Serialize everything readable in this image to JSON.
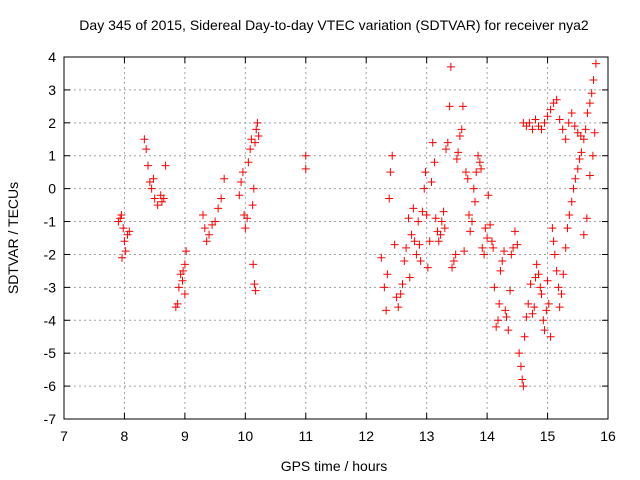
{
  "chart_data": {
    "type": "scatter",
    "title": "Day 345 of 2015, Sidereal Day-to-day VTEC variation (SDTVAR) for receiver nya2",
    "xlabel": "GPS time / hours",
    "ylabel": "SDTVAR / TECUs",
    "xlim": [
      7,
      16
    ],
    "ylim": [
      -7,
      4
    ],
    "xticks": [
      "7",
      "8",
      "9",
      "10",
      "11",
      "12",
      "13",
      "14",
      "15",
      "16"
    ],
    "yticks": [
      "-7",
      "-6",
      "-5",
      "-4",
      "-3",
      "-2",
      "-1",
      "0",
      "1",
      "2",
      "3",
      "4"
    ],
    "grid": true,
    "marker": "+",
    "color": "#ff0000",
    "series": [
      {
        "name": "SDTVAR",
        "segments": [
          [
            [
              7.9,
              -1.0
            ],
            [
              7.95,
              -0.8
            ],
            [
              7.98,
              -1.2
            ],
            [
              8.0,
              -1.6
            ],
            [
              8.02,
              -1.9
            ],
            [
              8.05,
              -1.4
            ],
            [
              8.08,
              -1.3
            ],
            [
              7.93,
              -0.9
            ],
            [
              7.96,
              -2.1
            ]
          ],
          [
            [
              8.33,
              1.5
            ],
            [
              8.36,
              1.2
            ],
            [
              8.39,
              0.7
            ],
            [
              8.42,
              0.2
            ],
            [
              8.45,
              0.0
            ],
            [
              8.48,
              0.3
            ],
            [
              8.5,
              -0.3
            ],
            [
              8.55,
              -0.5
            ],
            [
              8.6,
              -0.2
            ],
            [
              8.65,
              -0.3
            ],
            [
              8.68,
              0.7
            ],
            [
              8.62,
              -0.4
            ]
          ],
          [
            [
              8.85,
              -3.6
            ],
            [
              8.88,
              -3.5
            ],
            [
              8.9,
              -3.0
            ],
            [
              8.93,
              -2.6
            ],
            [
              8.96,
              -2.8
            ],
            [
              9.0,
              -2.3
            ],
            [
              9.02,
              -1.9
            ],
            [
              9.0,
              -3.2
            ],
            [
              8.97,
              -2.5
            ]
          ],
          [
            [
              9.3,
              -0.8
            ],
            [
              9.33,
              -1.2
            ],
            [
              9.36,
              -1.6
            ],
            [
              9.4,
              -1.4
            ],
            [
              9.45,
              -1.1
            ],
            [
              9.5,
              -1.0
            ],
            [
              9.55,
              -0.6
            ],
            [
              9.6,
              -0.3
            ],
            [
              9.65,
              0.3
            ]
          ],
          [
            [
              9.9,
              -0.2
            ],
            [
              9.93,
              0.2
            ],
            [
              9.96,
              0.5
            ],
            [
              9.98,
              -0.8
            ],
            [
              10.0,
              -1.2
            ],
            [
              10.03,
              -0.9
            ],
            [
              10.05,
              0.8
            ],
            [
              10.08,
              1.2
            ],
            [
              10.1,
              1.5
            ],
            [
              10.12,
              -0.5
            ],
            [
              10.14,
              0.0
            ],
            [
              10.16,
              1.4
            ],
            [
              10.18,
              1.8
            ],
            [
              10.2,
              2.0
            ],
            [
              10.22,
              1.6
            ],
            [
              10.13,
              -2.3
            ],
            [
              10.17,
              -3.1
            ],
            [
              10.15,
              -2.9
            ]
          ],
          [
            [
              11.0,
              1.0
            ],
            [
              11.0,
              0.6
            ]
          ],
          [
            [
              12.25,
              -2.1
            ],
            [
              12.3,
              -3.0
            ],
            [
              12.33,
              -3.7
            ],
            [
              12.35,
              -2.6
            ],
            [
              12.38,
              -0.3
            ],
            [
              12.4,
              0.5
            ],
            [
              12.43,
              1.0
            ],
            [
              12.47,
              -1.7
            ],
            [
              12.5,
              -3.3
            ],
            [
              12.53,
              -3.6
            ],
            [
              12.57,
              -3.2
            ],
            [
              12.6,
              -2.9
            ],
            [
              12.63,
              -2.2
            ],
            [
              12.66,
              -1.8
            ],
            [
              12.7,
              -0.9
            ],
            [
              12.72,
              -2.7
            ],
            [
              12.75,
              -1.4
            ],
            [
              12.78,
              -0.6
            ],
            [
              12.8,
              -1.6
            ],
            [
              12.83,
              -2.0
            ],
            [
              12.86,
              -1.0
            ],
            [
              12.88,
              -1.7
            ],
            [
              12.9,
              -2.2
            ],
            [
              12.93,
              -0.7
            ],
            [
              12.96,
              0.0
            ],
            [
              12.98,
              0.5
            ],
            [
              13.0,
              -0.8
            ],
            [
              13.02,
              -2.4
            ],
            [
              13.05,
              -1.6
            ],
            [
              13.08,
              0.2
            ],
            [
              13.1,
              1.4
            ],
            [
              13.13,
              0.8
            ],
            [
              13.15,
              -0.9
            ],
            [
              13.18,
              -1.3
            ],
            [
              13.2,
              -1.6
            ],
            [
              13.23,
              -1.4
            ],
            [
              13.25,
              -1.0
            ],
            [
              13.28,
              -0.7
            ],
            [
              13.3,
              -1.2
            ],
            [
              13.32,
              1.2
            ],
            [
              13.35,
              1.4
            ],
            [
              13.38,
              2.5
            ],
            [
              13.4,
              3.7
            ],
            [
              13.42,
              -2.4
            ],
            [
              13.45,
              -2.2
            ],
            [
              13.48,
              -2.0
            ],
            [
              13.5,
              0.9
            ],
            [
              13.52,
              1.1
            ],
            [
              13.55,
              1.6
            ],
            [
              13.58,
              1.8
            ],
            [
              13.6,
              2.5
            ],
            [
              13.62,
              -1.9
            ],
            [
              13.65,
              0.5
            ],
            [
              13.68,
              0.3
            ],
            [
              13.7,
              -0.8
            ],
            [
              13.72,
              -1.3
            ],
            [
              13.75,
              -1.0
            ],
            [
              13.78,
              0.0
            ],
            [
              13.8,
              -0.4
            ],
            [
              13.82,
              0.5
            ],
            [
              13.85,
              1.0
            ],
            [
              13.88,
              0.8
            ],
            [
              13.9,
              0.6
            ],
            [
              13.92,
              -1.8
            ],
            [
              13.95,
              -2.0
            ],
            [
              13.97,
              -1.2
            ],
            [
              14.0,
              -1.5
            ],
            [
              14.02,
              -0.2
            ],
            [
              14.05,
              -1.1
            ],
            [
              14.08,
              -1.6
            ],
            [
              14.1,
              -1.8
            ],
            [
              14.12,
              -3.0
            ],
            [
              14.15,
              -4.2
            ],
            [
              14.18,
              -4.0
            ],
            [
              14.2,
              -3.5
            ],
            [
              14.22,
              -2.5
            ],
            [
              14.25,
              -2.2
            ],
            [
              14.28,
              -1.9
            ],
            [
              14.3,
              -3.7
            ],
            [
              14.32,
              -3.9
            ],
            [
              14.35,
              -4.3
            ],
            [
              14.38,
              -3.1
            ],
            [
              14.4,
              -2.0
            ],
            [
              14.43,
              -1.8
            ],
            [
              14.46,
              -1.3
            ],
            [
              14.5,
              -1.7
            ],
            [
              14.53,
              -5.0
            ],
            [
              14.56,
              -5.4
            ],
            [
              14.58,
              -5.8
            ],
            [
              14.6,
              -6.0
            ],
            [
              14.62,
              -4.5
            ],
            [
              14.65,
              -3.9
            ],
            [
              14.68,
              -3.5
            ],
            [
              14.72,
              -2.9
            ],
            [
              14.75,
              -3.8
            ],
            [
              14.78,
              -3.6
            ],
            [
              14.8,
              -2.7
            ],
            [
              14.82,
              -2.3
            ],
            [
              14.85,
              -2.6
            ],
            [
              14.88,
              -3.0
            ],
            [
              14.9,
              -3.2
            ],
            [
              14.93,
              -4.0
            ],
            [
              14.95,
              -4.3
            ],
            [
              14.98,
              -3.7
            ],
            [
              15.0,
              -2.8
            ],
            [
              15.02,
              -3.5
            ],
            [
              15.05,
              -4.5
            ],
            [
              15.08,
              -1.2
            ],
            [
              15.1,
              -1.6
            ],
            [
              15.12,
              -2.0
            ],
            [
              15.15,
              -2.5
            ],
            [
              15.18,
              -3.0
            ],
            [
              15.2,
              -3.6
            ],
            [
              15.23,
              -3.2
            ],
            [
              15.26,
              -2.6
            ],
            [
              15.3,
              -1.8
            ],
            [
              15.33,
              -1.2
            ],
            [
              15.36,
              -0.8
            ],
            [
              15.4,
              -0.4
            ],
            [
              15.43,
              0.0
            ],
            [
              15.46,
              0.3
            ],
            [
              15.5,
              0.6
            ],
            [
              15.53,
              0.9
            ],
            [
              15.56,
              1.1
            ],
            [
              15.6,
              1.5
            ],
            [
              15.63,
              1.8
            ],
            [
              15.66,
              2.3
            ],
            [
              15.7,
              2.6
            ],
            [
              15.73,
              2.9
            ],
            [
              15.76,
              3.3
            ],
            [
              15.6,
              -1.4
            ],
            [
              15.65,
              -0.9
            ],
            [
              15.7,
              0.4
            ],
            [
              15.75,
              1.0
            ],
            [
              15.78,
              1.7
            ],
            [
              15.8,
              3.8
            ]
          ],
          [
            [
              14.6,
              2.0
            ],
            [
              14.65,
              1.9
            ],
            [
              14.7,
              2.0
            ],
            [
              14.75,
              1.8
            ],
            [
              14.8,
              2.1
            ],
            [
              14.85,
              1.9
            ],
            [
              14.9,
              1.8
            ],
            [
              14.95,
              2.0
            ],
            [
              15.0,
              2.2
            ],
            [
              15.05,
              2.4
            ],
            [
              15.1,
              2.6
            ],
            [
              15.15,
              2.7
            ],
            [
              15.2,
              2.1
            ],
            [
              15.25,
              1.8
            ],
            [
              15.3,
              1.5
            ],
            [
              15.35,
              2.0
            ],
            [
              15.4,
              2.3
            ],
            [
              15.45,
              1.9
            ],
            [
              15.5,
              1.7
            ],
            [
              15.55,
              1.6
            ]
          ]
        ]
      }
    ]
  }
}
